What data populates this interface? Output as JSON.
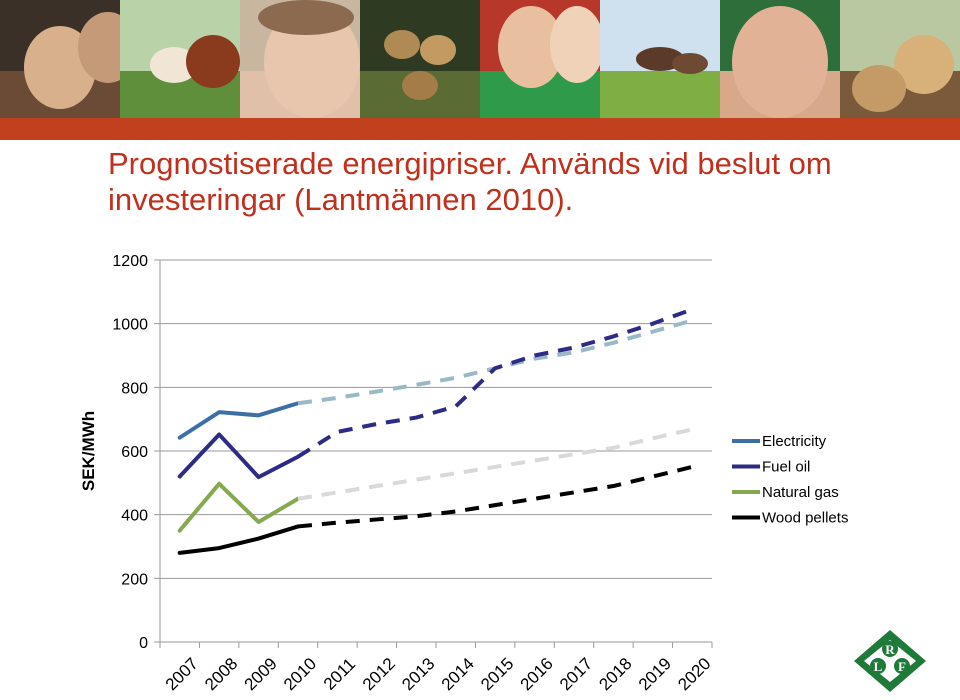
{
  "title": "Prognostiserade energipriser. Används vid beslut om investeringar (Lantmännen 2010).",
  "banner": {
    "photos": [
      "farmers-photo",
      "cows-photo",
      "woman-photo",
      "potatoes-photo",
      "young-couple-photo",
      "horses-photo",
      "man-photo",
      "timber-photo"
    ]
  },
  "logo": {
    "letters": [
      "R",
      "L",
      "F"
    ],
    "color": "#1f7a3a"
  },
  "chart_data": {
    "type": "line",
    "title": "",
    "xlabel": "",
    "ylabel": "SEK/MWh",
    "x": [
      "2007",
      "2008",
      "2009",
      "2010",
      "2011",
      "2012",
      "2013",
      "2014",
      "2015",
      "2016",
      "2017",
      "2018",
      "2019",
      "2020"
    ],
    "ylim": [
      0,
      1200
    ],
    "yticks": [
      0,
      200,
      400,
      600,
      800,
      1000,
      1200
    ],
    "grid": true,
    "legend_position": "right",
    "actual_until": "2010",
    "series": [
      {
        "name": "Electricity",
        "color": "#3d6fa6",
        "forecast_color": "#9ab9c6",
        "values": [
          642,
          722,
          712,
          750,
          767,
          787,
          808,
          830,
          860,
          890,
          910,
          940,
          975,
          1010
        ]
      },
      {
        "name": "Fuel oil",
        "color": "#2e2b86",
        "forecast_color": "#2e2b86",
        "values": [
          520,
          652,
          518,
          582,
          660,
          685,
          705,
          740,
          860,
          900,
          925,
          960,
          1000,
          1045
        ]
      },
      {
        "name": "Natural gas",
        "color": "#86a84e",
        "forecast_color": "#d9d9d9",
        "values": [
          350,
          497,
          377,
          450,
          470,
          490,
          510,
          530,
          550,
          570,
          590,
          610,
          640,
          668
        ]
      },
      {
        "name": "Wood pellets",
        "color": "#000000",
        "forecast_color": "#000000",
        "values": [
          280,
          295,
          325,
          363,
          375,
          385,
          395,
          410,
          430,
          450,
          470,
          490,
          520,
          550
        ]
      }
    ]
  }
}
